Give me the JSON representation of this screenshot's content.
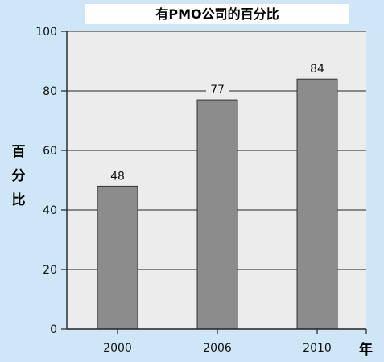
{
  "chart_data": {
    "type": "bar",
    "title": "有PMO公司的百分比",
    "xlabel": "年",
    "ylabel": "百分比",
    "categories": [
      "2000",
      "2006",
      "2010"
    ],
    "values": [
      48,
      77,
      84
    ],
    "data_labels": [
      "48",
      "77",
      "84"
    ],
    "yticks": [
      0,
      20,
      40,
      60,
      80,
      100
    ],
    "ylim": [
      0,
      100
    ],
    "grid": true,
    "colors": {
      "background": "#cfe6f7",
      "plot_area": "#ececec",
      "bar_fill": "#8c8c8c",
      "bar_stroke": "#333333",
      "axis": "#222222",
      "grid": "#222222"
    }
  }
}
